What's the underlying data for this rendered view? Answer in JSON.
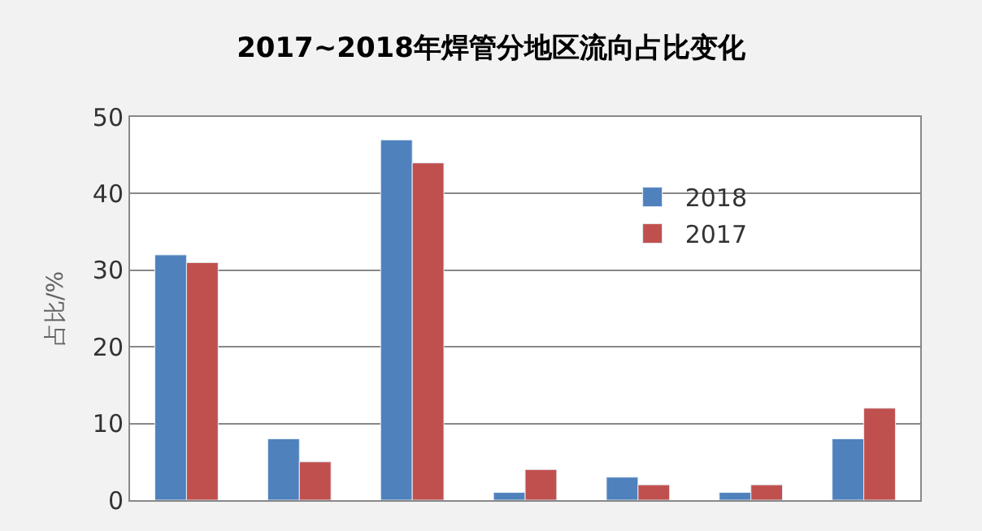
{
  "chart_data": {
    "type": "bar",
    "title": "2017~2018年焊管分地区流向占比变化",
    "ylabel": "占比/%",
    "categories": [
      null,
      null,
      null,
      null,
      null,
      null,
      null
    ],
    "series": [
      {
        "name": "2018",
        "color": "#4f81bd",
        "values": [
          32,
          8,
          47,
          1,
          3,
          1,
          8
        ]
      },
      {
        "name": "2017",
        "color": "#c0504d",
        "values": [
          31,
          5,
          44,
          4,
          2,
          2,
          12
        ]
      }
    ],
    "ylim": [
      0,
      50
    ],
    "yticks": [
      0,
      10,
      20,
      30,
      40,
      50
    ],
    "grid": "y",
    "legend": "top right",
    "tick_labels": "y"
  }
}
